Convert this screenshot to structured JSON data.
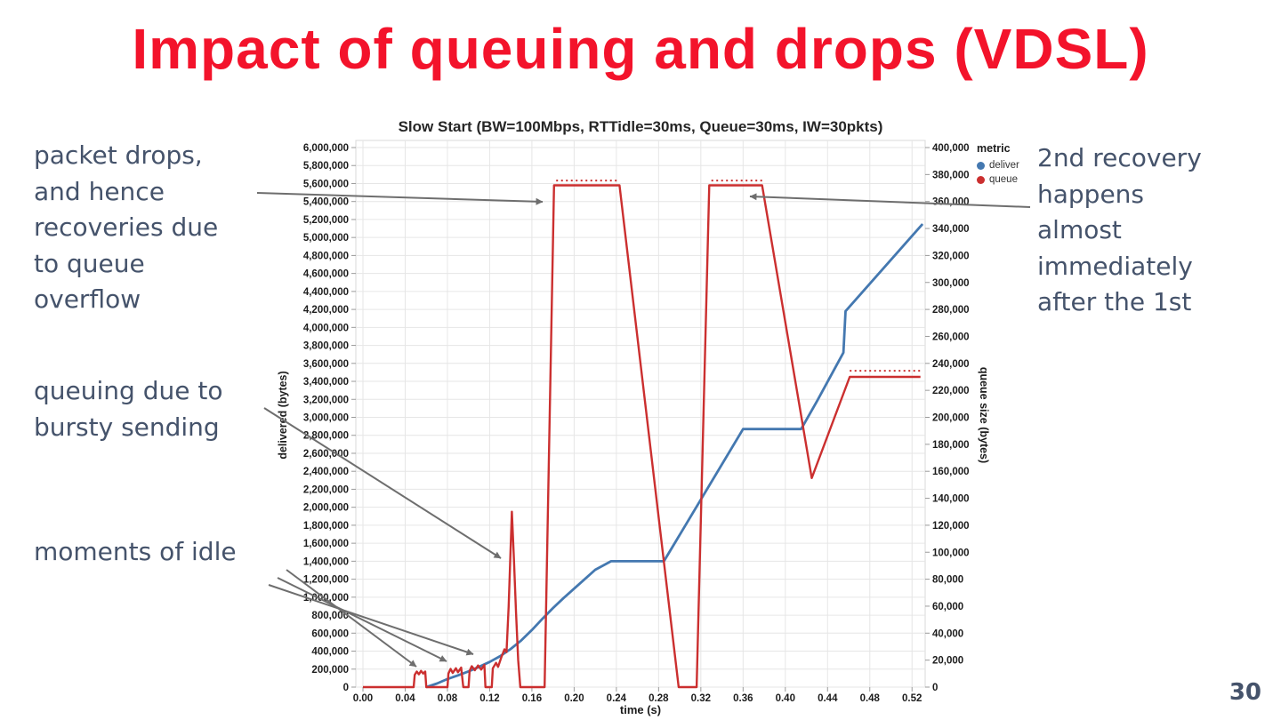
{
  "slide": {
    "title": "Impact of queuing and drops (VDSL)",
    "page_number": "30",
    "colors": {
      "title_red": "#f3132b",
      "annotation_text": "#45536b",
      "arrow_gray": "#6e6e6e",
      "deliver_blue": "#4478b0",
      "queue_red": "#cb2f2f"
    }
  },
  "annotations": {
    "packet_drops": "packet drops,\nand hence\nrecoveries due\nto queue\noverflow",
    "queuing": "queuing due to\nbursty sending",
    "idle": "moments of idle",
    "second_recovery": "2nd recovery\nhappens\nalmost\nimmediately\nafter the 1st"
  },
  "chart_data": {
    "type": "line",
    "title": "Slow Start (BW=100Mbps, RTTidle=30ms, Queue=30ms, IW=30pkts)",
    "xlabel": "time (s)",
    "ylabel_left": "delivered (bytes)",
    "ylabel_right": "queue size (bytes)",
    "grid": true,
    "x_ticks": [
      0,
      0.04,
      0.08,
      0.12,
      0.16,
      0.2,
      0.24,
      0.28,
      0.32,
      0.36,
      0.4,
      0.44,
      0.48,
      0.52
    ],
    "xlim": [
      -0.007,
      0.533
    ],
    "ylim_left": [
      0,
      6000000
    ],
    "ylim_right": [
      0,
      400000
    ],
    "y_tick_step_left": 200000,
    "y_tick_step_right": 20000,
    "legend": {
      "title": "metric",
      "position": "top-right",
      "entries": [
        {
          "label": "deliver",
          "color": "#4478b0"
        },
        {
          "label": "queue",
          "color": "#cb2f2f"
        }
      ]
    },
    "series": [
      {
        "name": "deliver",
        "axis": "left",
        "color": "#4478b0",
        "points": [
          [
            0.06,
            0
          ],
          [
            0.07,
            40000
          ],
          [
            0.08,
            90000
          ],
          [
            0.09,
            130000
          ],
          [
            0.1,
            175000
          ],
          [
            0.11,
            225000
          ],
          [
            0.12,
            280000
          ],
          [
            0.13,
            345000
          ],
          [
            0.14,
            425000
          ],
          [
            0.15,
            520000
          ],
          [
            0.16,
            635000
          ],
          [
            0.17,
            760000
          ],
          [
            0.18,
            880000
          ],
          [
            0.19,
            990000
          ],
          [
            0.2,
            1095000
          ],
          [
            0.21,
            1200000
          ],
          [
            0.22,
            1305000
          ],
          [
            0.235,
            1400000
          ],
          [
            0.285,
            1400000
          ],
          [
            0.36,
            2870000
          ],
          [
            0.415,
            2870000
          ],
          [
            0.43,
            3180000
          ],
          [
            0.455,
            3720000
          ],
          [
            0.457,
            4180000
          ],
          [
            0.53,
            5150000
          ]
        ]
      },
      {
        "name": "queue",
        "axis": "right",
        "color": "#cb2f2f",
        "points": [
          [
            0,
            0
          ],
          [
            0.048,
            0
          ],
          [
            0.049,
            9000
          ],
          [
            0.051,
            11500
          ],
          [
            0.053,
            9500
          ],
          [
            0.055,
            12000
          ],
          [
            0.057,
            10000
          ],
          [
            0.059,
            11500
          ],
          [
            0.06,
            0
          ],
          [
            0.08,
            0
          ],
          [
            0.081,
            10000
          ],
          [
            0.083,
            13500
          ],
          [
            0.085,
            10500
          ],
          [
            0.088,
            14000
          ],
          [
            0.09,
            11000
          ],
          [
            0.093,
            14500
          ],
          [
            0.095,
            0
          ],
          [
            0.1,
            0
          ],
          [
            0.101,
            12000
          ],
          [
            0.103,
            15500
          ],
          [
            0.106,
            12500
          ],
          [
            0.109,
            16000
          ],
          [
            0.112,
            13000
          ],
          [
            0.115,
            16500
          ],
          [
            0.116,
            0
          ],
          [
            0.122,
            0
          ],
          [
            0.123,
            14000
          ],
          [
            0.126,
            18000
          ],
          [
            0.128,
            15000
          ],
          [
            0.131,
            22000
          ],
          [
            0.134,
            28000
          ],
          [
            0.136,
            26000
          ],
          [
            0.138,
            60000
          ],
          [
            0.141,
            130000
          ],
          [
            0.143,
            95000
          ],
          [
            0.145,
            55000
          ],
          [
            0.147,
            20000
          ],
          [
            0.149,
            0
          ],
          [
            0.172,
            0
          ],
          [
            0.181,
            372000
          ],
          [
            0.243,
            372000
          ],
          [
            0.299,
            0
          ],
          [
            0.316,
            0
          ],
          [
            0.328,
            372000
          ],
          [
            0.378,
            372000
          ],
          [
            0.425,
            155000
          ],
          [
            0.461,
            230000
          ],
          [
            0.528,
            230000
          ]
        ]
      }
    ],
    "queue_dotted_segments": [
      {
        "t0": 0.183,
        "t1": 0.243,
        "value": 375500
      },
      {
        "t0": 0.33,
        "t1": 0.378,
        "value": 375500
      },
      {
        "t0": 0.461,
        "t1": 0.528,
        "value": 234500
      }
    ]
  }
}
